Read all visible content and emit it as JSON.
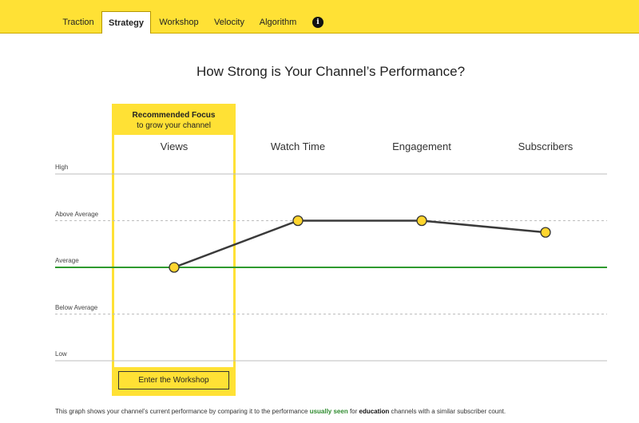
{
  "nav": {
    "tabs": [
      {
        "label": "Traction",
        "active": false
      },
      {
        "label": "Strategy",
        "active": true
      },
      {
        "label": "Workshop",
        "active": false
      },
      {
        "label": "Velocity",
        "active": false
      },
      {
        "label": "Algorithm",
        "active": false
      }
    ],
    "info_icon": "i"
  },
  "page": {
    "title": "How Strong is Your Channel’s Performance?"
  },
  "focus": {
    "title": "Recommended Focus",
    "subtitle": "to grow your channel",
    "button_label": "Enter the Workshop"
  },
  "chart_data": {
    "type": "line",
    "categories": [
      "Views",
      "Watch Time",
      "Engagement",
      "Subscribers"
    ],
    "levels": [
      "High",
      "Above Average",
      "Average",
      "Below Average",
      "Low"
    ],
    "ylim": [
      0,
      4
    ],
    "values": [
      2,
      3,
      3,
      2.75
    ],
    "average_line_value": 2,
    "colors": {
      "line": "#3a3a3a",
      "marker": "#ffd52e",
      "average": "#2e9a2e",
      "accent": "#ffe135"
    }
  },
  "footnote": {
    "part1": "This graph shows your channel’s current performance by comparing it to the performance ",
    "highlight1": "usually seen",
    "part2": " for ",
    "highlight2": "education",
    "part3": " channels with a similar subscriber count."
  }
}
